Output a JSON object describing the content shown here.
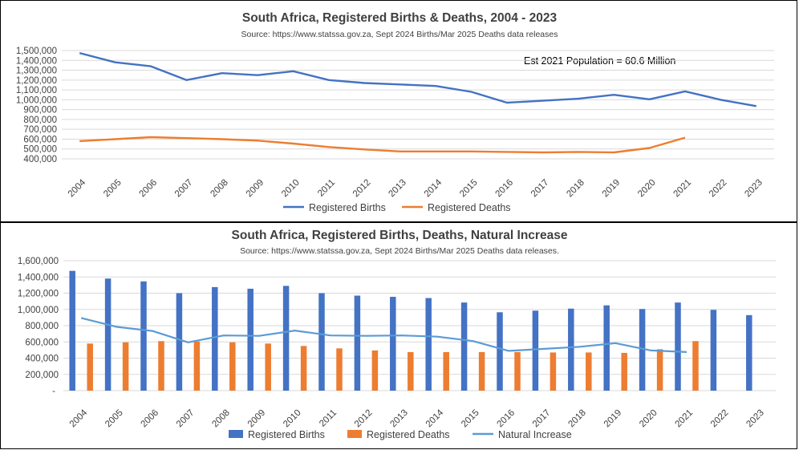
{
  "charts": {
    "colors": {
      "births": "#4472C4",
      "deaths": "#ED7D31",
      "natural": "#5B9BD5",
      "grid": "#D9D9D9"
    },
    "top": {
      "title": "South Africa, Registered Births & Deaths, 2004 - 2023",
      "subtitle": "Source: https://www.statssa.gov.za, Sept 2024 Births/Mar 2025 Deaths data releases",
      "annotation": "Est 2021 Population = 60.6 Million",
      "y_tick_labels": [
        "400,000",
        "500,000",
        "600,000",
        "700,000",
        "800,000",
        "900,000",
        "1,000,000",
        "1,100,000",
        "1,200,000",
        "1,300,000",
        "1,400,000",
        "1,500,000"
      ],
      "legend": {
        "births": "Registered Births",
        "deaths": "Registered Deaths"
      }
    },
    "bottom": {
      "title": "South Africa, Registered Births, Deaths, Natural Increase",
      "subtitle": "Source: https://www.statssa.gov.za, Sept 2024 Births/Mar 2025 Deaths data releases.",
      "y_tick_labels": [
        "-",
        "200,000",
        "400,000",
        "600,000",
        "800,000",
        "1,000,000",
        "1,200,000",
        "1,400,000",
        "1,600,000"
      ],
      "legend": {
        "births": "Registered Births",
        "deaths": "Registered Deaths",
        "natural": "Natural Increase"
      }
    }
  },
  "chart_data": [
    {
      "type": "line",
      "title": "South Africa, Registered Births & Deaths, 2004 - 2023",
      "x": [
        "2004",
        "2005",
        "2006",
        "2007",
        "2008",
        "2009",
        "2010",
        "2011",
        "2012",
        "2013",
        "2014",
        "2015",
        "2016",
        "2017",
        "2018",
        "2019",
        "2020",
        "2021",
        "2022",
        "2023"
      ],
      "ylim": [
        400000,
        1500000
      ],
      "grid": true,
      "legend_position": "bottom",
      "series": [
        {
          "name": "Registered Births",
          "values": [
            1475000,
            1380000,
            1340000,
            1200000,
            1270000,
            1250000,
            1290000,
            1200000,
            1170000,
            1155000,
            1140000,
            1080000,
            970000,
            990000,
            1010000,
            1050000,
            1005000,
            1085000,
            1000000,
            935000
          ]
        },
        {
          "name": "Registered Deaths",
          "values": [
            580000,
            600000,
            620000,
            610000,
            600000,
            585000,
            555000,
            520000,
            495000,
            475000,
            475000,
            475000,
            470000,
            465000,
            470000,
            465000,
            510000,
            615000,
            null,
            null
          ]
        }
      ]
    },
    {
      "type": "bar",
      "title": "South Africa, Registered Births, Deaths, Natural Increase",
      "categories": [
        "2004",
        "2005",
        "2006",
        "2007",
        "2008",
        "2009",
        "2010",
        "2011",
        "2012",
        "2013",
        "2014",
        "2015",
        "2016",
        "2017",
        "2018",
        "2019",
        "2020",
        "2021",
        "2022",
        "2023"
      ],
      "ylim": [
        0,
        1600000
      ],
      "grid": true,
      "legend_position": "bottom",
      "series": [
        {
          "name": "Registered Births",
          "type": "bar",
          "values": [
            1475000,
            1380000,
            1345000,
            1200000,
            1275000,
            1255000,
            1290000,
            1200000,
            1170000,
            1155000,
            1140000,
            1085000,
            965000,
            985000,
            1010000,
            1050000,
            1005000,
            1085000,
            995000,
            930000
          ]
        },
        {
          "name": "Registered Deaths",
          "type": "bar",
          "values": [
            580000,
            595000,
            610000,
            605000,
            595000,
            580000,
            550000,
            520000,
            495000,
            475000,
            475000,
            475000,
            475000,
            470000,
            470000,
            465000,
            510000,
            610000,
            null,
            null
          ]
        },
        {
          "name": "Natural Increase",
          "type": "line",
          "values": [
            895000,
            785000,
            735000,
            595000,
            680000,
            675000,
            740000,
            680000,
            675000,
            680000,
            665000,
            610000,
            490000,
            515000,
            540000,
            585000,
            495000,
            475000,
            null,
            null
          ]
        }
      ]
    }
  ]
}
